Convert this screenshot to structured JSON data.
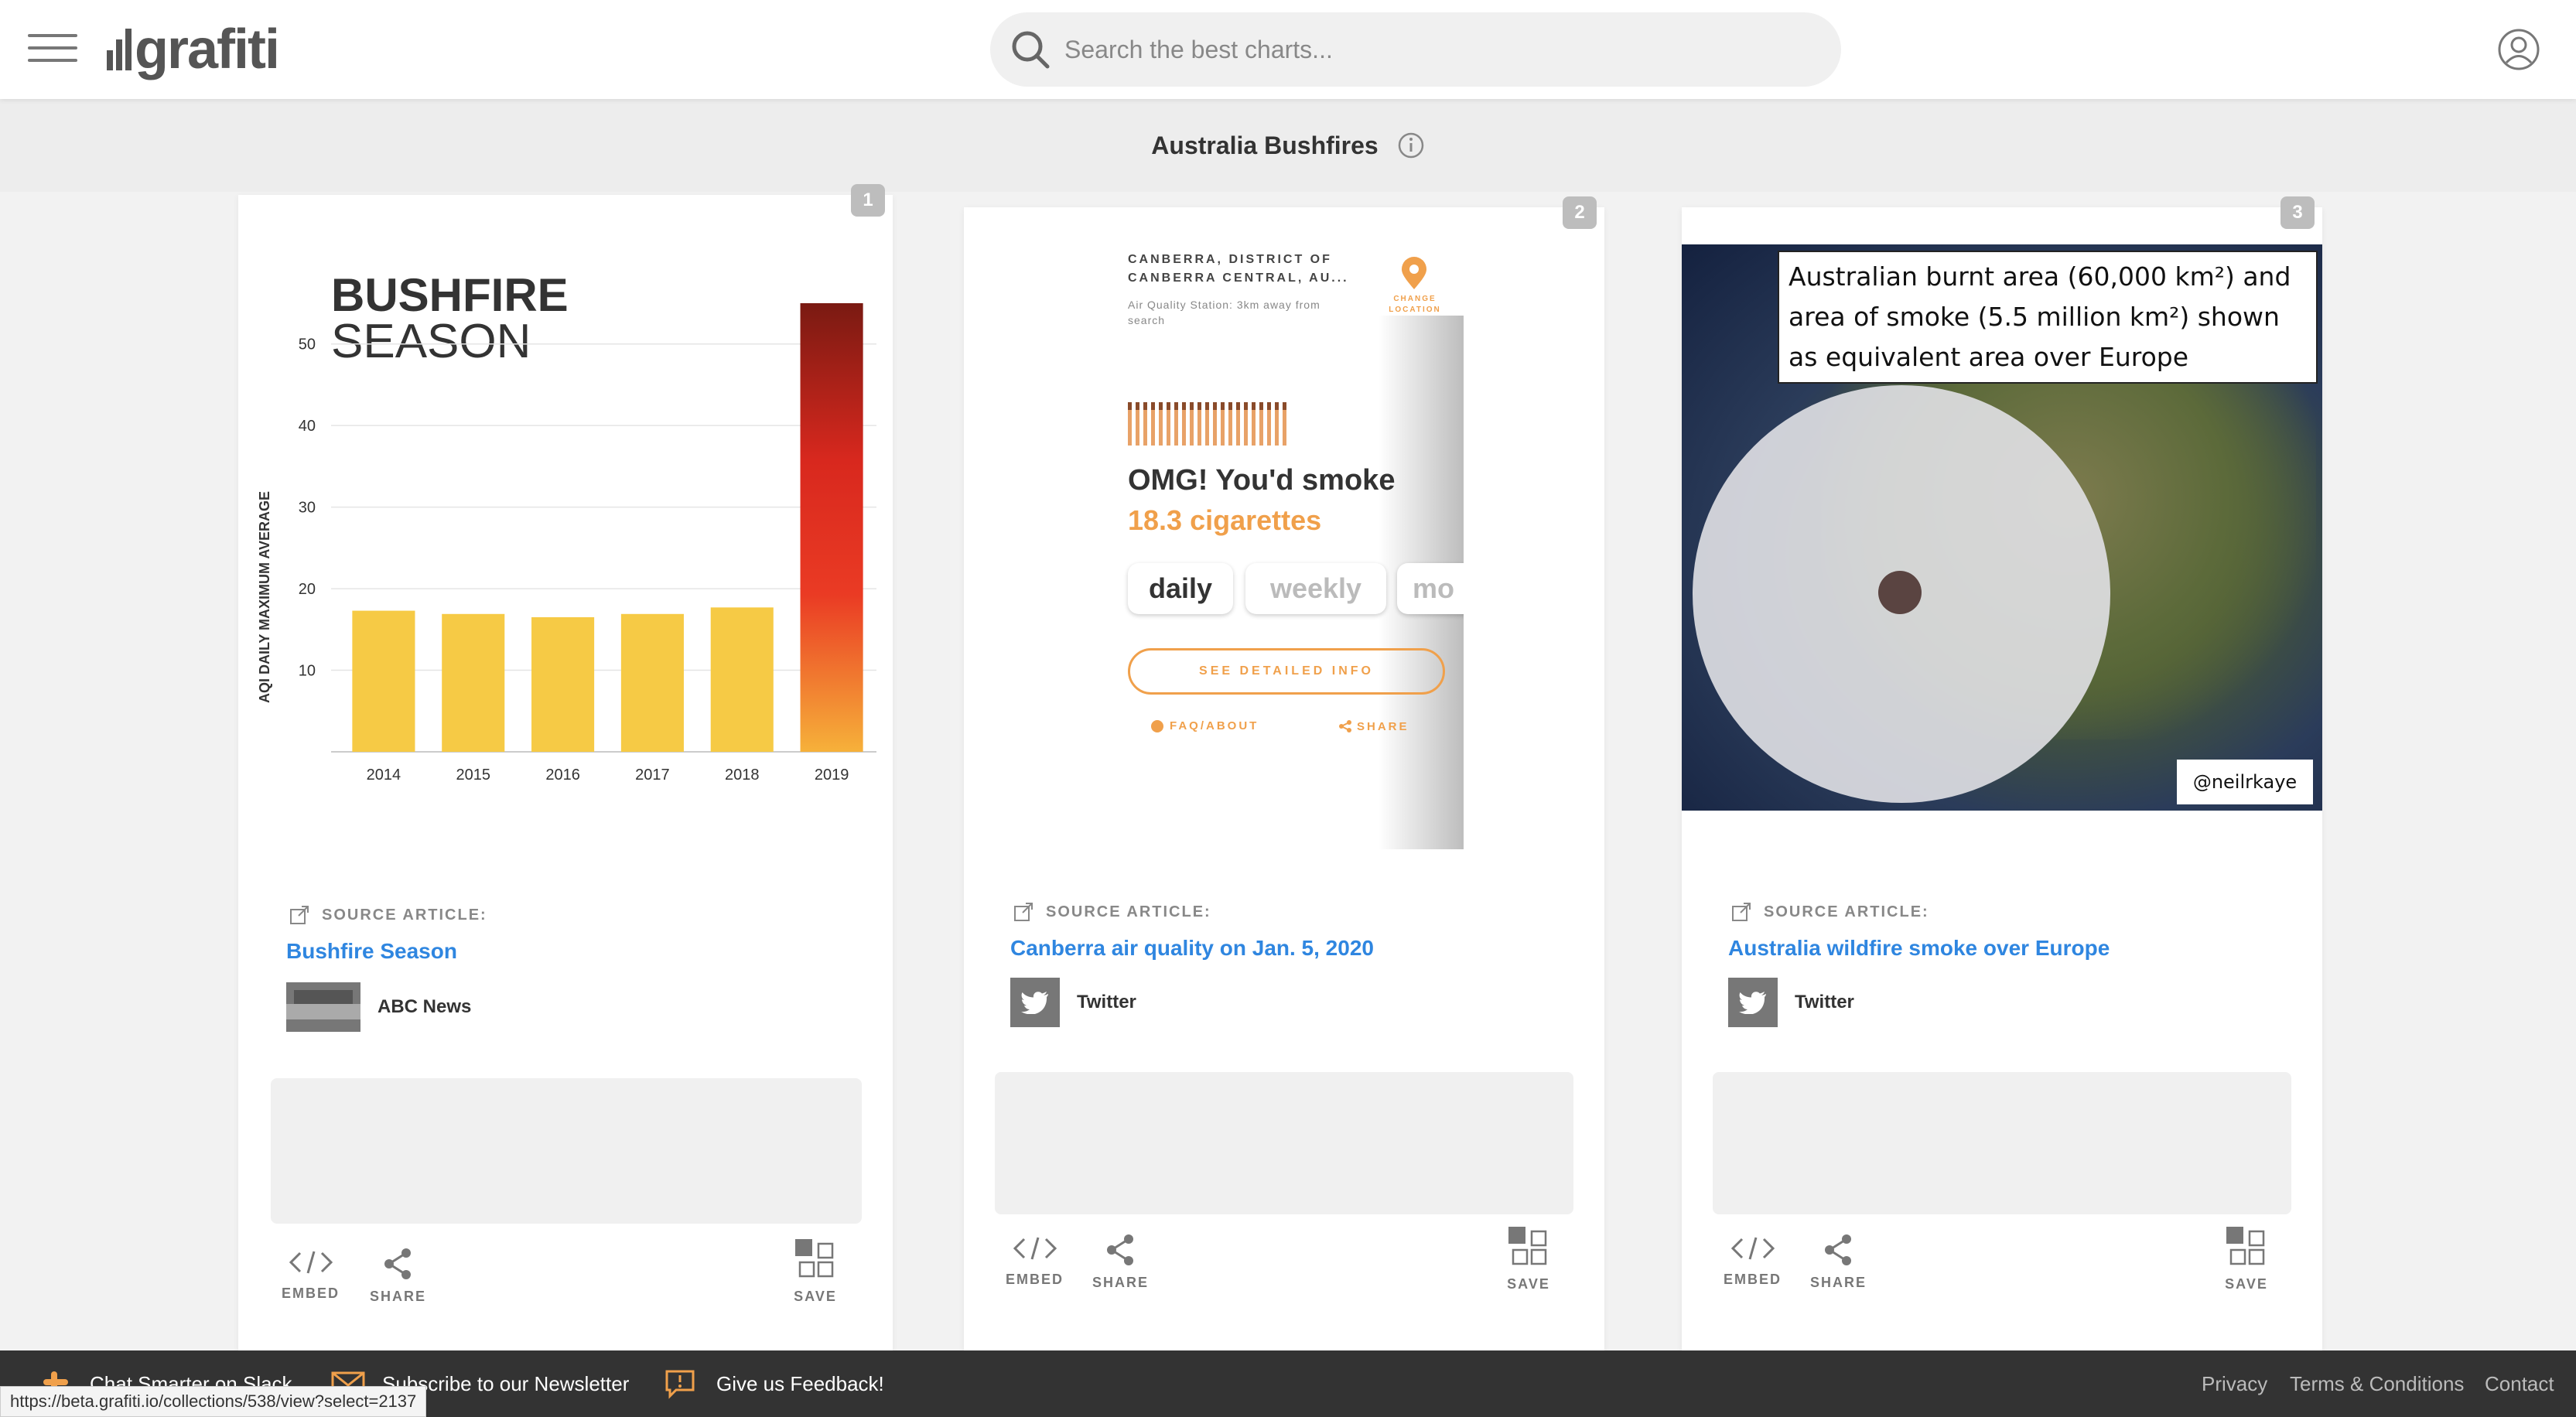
{
  "header": {
    "logo_text": "grafiti",
    "search_placeholder": "Search the best charts..."
  },
  "collection": {
    "title": "Australia Bushfires"
  },
  "cards": [
    {
      "number": "1",
      "source_label": "SOURCE ARTICLE:",
      "source_title": "Bushfire Season",
      "publisher": "ABC News",
      "actions": {
        "embed": "EMBED",
        "share": "SHARE",
        "save": "SAVE"
      }
    },
    {
      "number": "2",
      "source_label": "SOURCE ARTICLE:",
      "source_title": "Canberra air quality on Jan. 5, 2020",
      "publisher": "Twitter",
      "actions": {
        "embed": "EMBED",
        "share": "SHARE",
        "save": "SAVE"
      }
    },
    {
      "number": "3",
      "source_label": "SOURCE ARTICLE:",
      "source_title": "Australia wildfire smoke over Europe",
      "publisher": "Twitter",
      "actions": {
        "embed": "EMBED",
        "share": "SHARE",
        "save": "SAVE"
      }
    }
  ],
  "chart_data": {
    "type": "bar",
    "title": "BUSHFIRE SEASON",
    "ylabel": "AQI DAILY MAXIMUM AVERAGE",
    "xlabel": "",
    "categories": [
      "2014",
      "2015",
      "2016",
      "2017",
      "2018",
      "2019"
    ],
    "values": [
      17.3,
      16.9,
      16.5,
      16.9,
      17.7,
      55
    ],
    "yticks": [
      10,
      20,
      30,
      40,
      50
    ],
    "ylim": [
      0,
      55
    ]
  },
  "air_quality": {
    "location": "CANBERRA, DISTRICT OF CANBERRA CENTRAL, AU...",
    "station": "Air Quality Station: 3km away from search",
    "change_location": "CHANGE LOCATION",
    "headline": "OMG! You'd smoke",
    "cigarettes": "18.3 cigarettes",
    "tabs": [
      "daily",
      "weekly",
      "mo"
    ],
    "detail_button": "SEE DETAILED INFO",
    "faq": "FAQ/ABOUT",
    "share": "SHARE"
  },
  "europe_map": {
    "caption": "Australian burnt area (60,000 km²) and area of smoke (5.5 million km²) shown as equivalent area over Europe",
    "credit": "@neilrkaye"
  },
  "footer": {
    "slack": "Chat Smarter on Slack",
    "newsletter": "Subscribe to our Newsletter",
    "feedback": "Give us Feedback!",
    "privacy": "Privacy",
    "terms": "Terms & Conditions",
    "contact": "Contact",
    "status_url": "https://beta.grafiti.io/collections/538/view?select=2137"
  },
  "colors": {
    "link": "#2f86e0",
    "bar": "#f6ca45",
    "orange": "#f0a04b"
  }
}
